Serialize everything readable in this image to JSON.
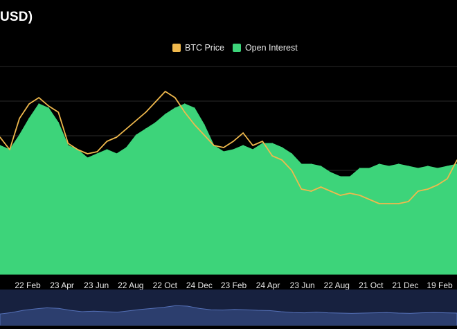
{
  "title": "USD)",
  "legend": [
    {
      "label": "BTC Price",
      "color": "#f0b94d"
    },
    {
      "label": "Open Interest",
      "color": "#3dd47a"
    }
  ],
  "colors": {
    "background": "#000000",
    "grid": "#2a2a2a",
    "btc_price": "#f0b94d",
    "open_interest": "#3dd47a",
    "navigator_bg": "#17213f",
    "navigator_area": "#2c3e6e",
    "navigator_line": "#5571b8"
  },
  "chart_data": {
    "type": "area",
    "x_ticks": [
      "22 Feb",
      "23 Apr",
      "23 Jun",
      "22 Aug",
      "22 Oct",
      "24 Dec",
      "23 Feb",
      "24 Apr",
      "23 Jun",
      "22 Aug",
      "21 Oct",
      "21 Dec",
      "19 Feb"
    ],
    "grid": true,
    "legend_position": "top-center",
    "ylim": [
      0,
      100
    ],
    "series": [
      {
        "name": "Open Interest",
        "kind": "area",
        "values": [
          62,
          60,
          67,
          75,
          82,
          80,
          73,
          62,
          60,
          56,
          58,
          60,
          58,
          61,
          67,
          70,
          73,
          77,
          80,
          82,
          80,
          72,
          62,
          59,
          60,
          62,
          60,
          63,
          63,
          61,
          58,
          53,
          53,
          52,
          49,
          47,
          47,
          51,
          51,
          53,
          52,
          53,
          52,
          51,
          52,
          51,
          52,
          53
        ]
      },
      {
        "name": "BTC Price",
        "kind": "line",
        "values": [
          66,
          60,
          75,
          82,
          85,
          81,
          78,
          63,
          60,
          58,
          59,
          64,
          66,
          70,
          74,
          78,
          83,
          88,
          85,
          78,
          72,
          67,
          62,
          61,
          64,
          68,
          62,
          64,
          57,
          55,
          50,
          41,
          40,
          42,
          40,
          38,
          39,
          38,
          36,
          34,
          34,
          34,
          35,
          40,
          41,
          43,
          46,
          55
        ]
      }
    ]
  },
  "navigator": {
    "type": "area",
    "values": [
      42,
      47,
      55,
      60,
      64,
      62,
      55,
      50,
      52,
      50,
      48,
      53,
      58,
      62,
      66,
      72,
      70,
      62,
      57,
      56,
      58,
      57,
      55,
      54,
      50,
      47,
      46,
      48,
      46,
      45,
      44,
      45,
      46,
      47,
      45,
      44,
      46,
      47,
      46,
      45
    ]
  }
}
